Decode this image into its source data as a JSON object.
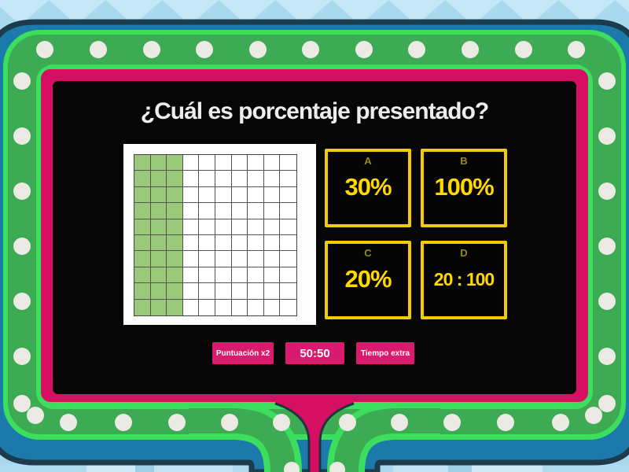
{
  "title": "¿Cuál es porcentaje presentado?",
  "figure": {
    "type": "hundred-grid",
    "rows": 10,
    "cols": 10,
    "filled_columns": 3,
    "filled_cells": 30,
    "filled_color": "#9bc97c",
    "empty_color": "#ffffff"
  },
  "answers": [
    {
      "letter": "A",
      "value": "30%"
    },
    {
      "letter": "B",
      "value": "100%"
    },
    {
      "letter": "C",
      "value": "20%"
    },
    {
      "letter": "D",
      "value": "20 : 100"
    }
  ],
  "powerups": [
    {
      "label": "Puntuación x2"
    },
    {
      "label": "50:50"
    },
    {
      "label": "Tiempo extra"
    }
  ],
  "colors": {
    "background_blue": "#a9d9ee",
    "frame_green_bright": "#3bdf5d",
    "frame_green_dark": "#3cab53",
    "frame_pink": "#d70f63",
    "body_blue": "#1b7aaa",
    "outline_navy": "#1c3b4d",
    "bulb_white": "#eceae4",
    "answer_border_yellow": "#f2ca08",
    "answer_text_yellow": "#ffd802",
    "button_pink": "#da1a6e",
    "screen_black": "#060606"
  }
}
